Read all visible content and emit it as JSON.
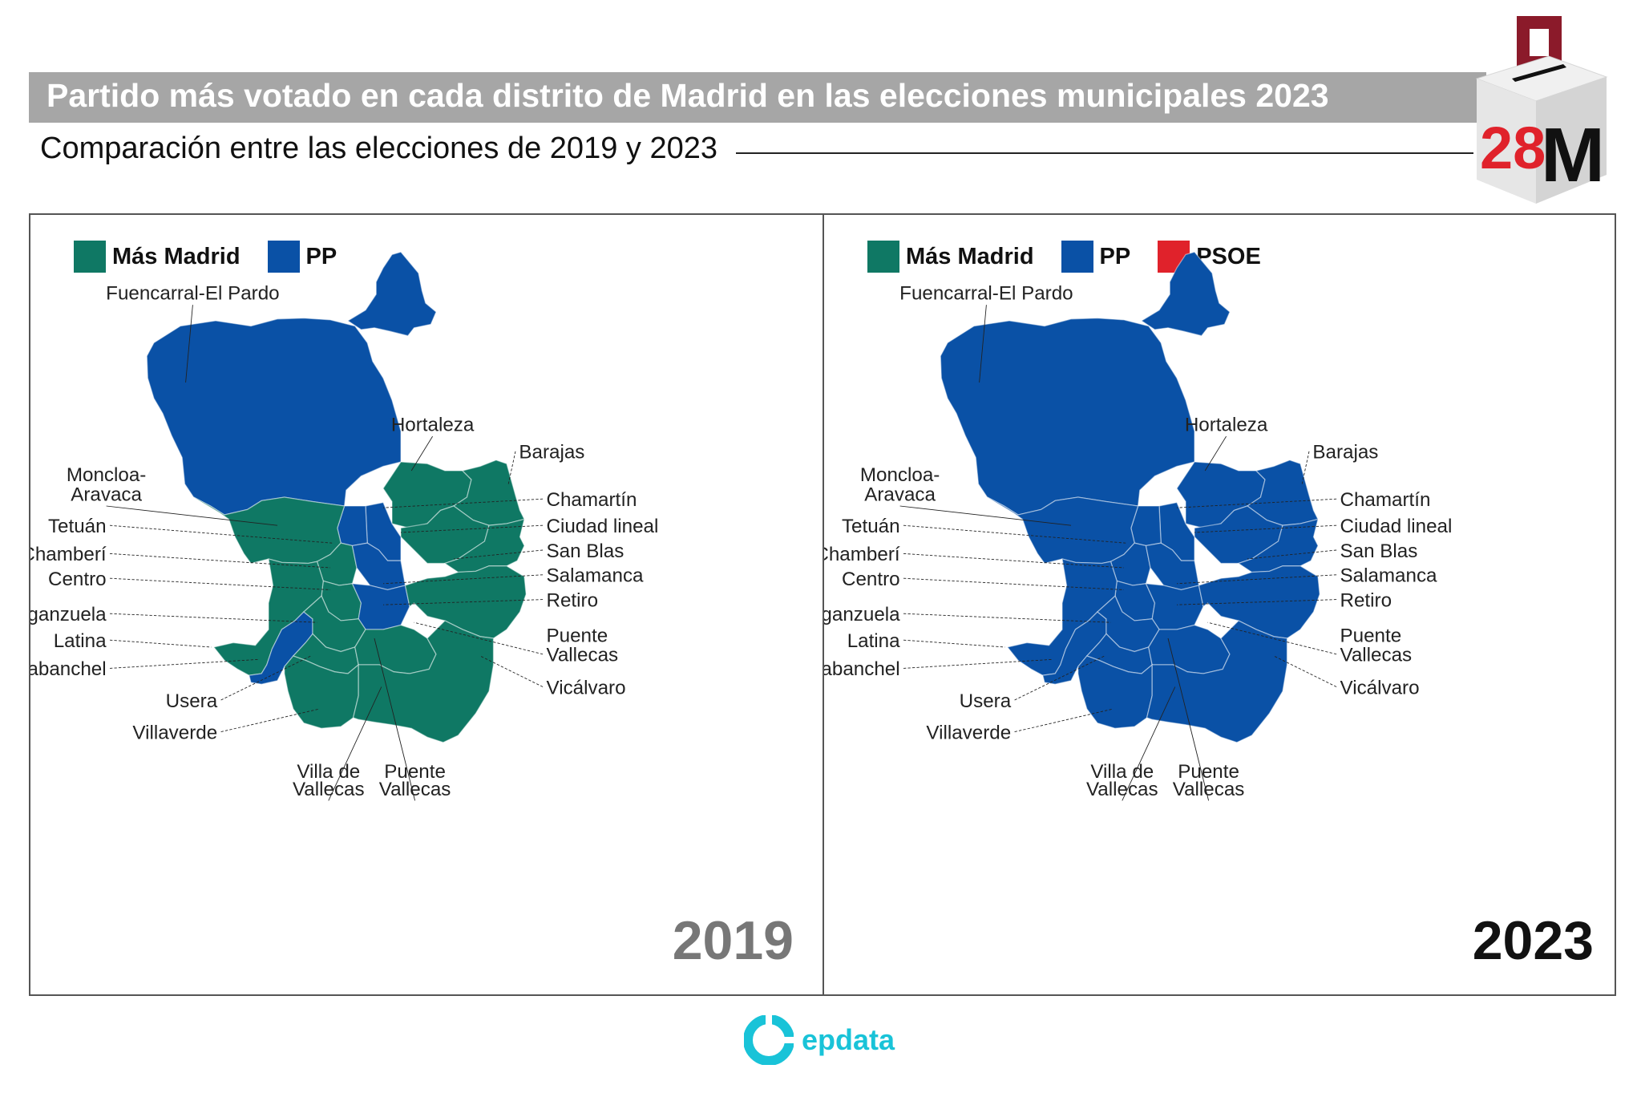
{
  "header": {
    "title": "Partido más votado en cada distrito de Madrid en las elecciones municipales 2023",
    "subtitle": "Comparación entre las elecciones de 2019 y 2023",
    "badge_number": "28",
    "badge_letter": "M"
  },
  "colors": {
    "mas_madrid": "#0f7864",
    "pp": "#0a51a6",
    "psoe": "#e0222b",
    "title_bar": "#a6a6a6",
    "brand": "#19c3d8"
  },
  "legend_2019": [
    {
      "label": "Más Madrid",
      "color": "#0f7864"
    },
    {
      "label": "PP",
      "color": "#0a51a6"
    }
  ],
  "legend_2023": [
    {
      "label": "Más Madrid",
      "color": "#0f7864"
    },
    {
      "label": "PP",
      "color": "#0a51a6"
    },
    {
      "label": "PSOE",
      "color": "#e0222b"
    }
  ],
  "year_2019": "2019",
  "year_2023": "2023",
  "district_labels": {
    "fuencarral": "Fuencarral-El Pardo",
    "hortaleza": "Hortaleza",
    "barajas": "Barajas",
    "moncloa_1": "Moncloa-",
    "moncloa_2": "Aravaca",
    "chamartin": "Chamartín",
    "tetuan": "Tetuán",
    "ciudad_lineal": "Ciudad lineal",
    "chamberi": "Chamberí",
    "san_blas": "San Blas",
    "centro": "Centro",
    "salamanca": "Salamanca",
    "retiro": "Retiro",
    "arganzuela": "Arganzuela",
    "latina": "Latina",
    "puente_1": "Puente",
    "puente_2": "Vallecas",
    "carabanchel": "Carabanchel",
    "vicalvaro": "Vicálvaro",
    "usera": "Usera",
    "villaverde": "Villaverde",
    "villa_vallecas_1": "Villa de",
    "villa_vallecas_2": "Vallecas",
    "puente_bottom_1": "Puente",
    "puente_bottom_2": "Vallecas"
  },
  "results": {
    "2019": {
      "Fuencarral-El Pardo": "PP",
      "Moncloa-Aravaca": "Más Madrid",
      "Tetuán": "PP",
      "Chamberí": "Más Madrid",
      "Centro": "Más Madrid",
      "Chamartín": "PP",
      "Salamanca": "PP",
      "Retiro": "PP",
      "Hortaleza": "Más Madrid",
      "Barajas": "Más Madrid",
      "Ciudad lineal": "Más Madrid",
      "San Blas": "Más Madrid",
      "Arganzuela": "Más Madrid",
      "Latina": "Más Madrid",
      "Carabanchel": "PP",
      "Usera": "Más Madrid",
      "Villaverde": "Más Madrid",
      "Puente Vallecas": "Más Madrid",
      "Villa de Vallecas": "Más Madrid",
      "Vicálvaro": "Más Madrid"
    },
    "2023": {
      "Fuencarral-El Pardo": "PP",
      "Moncloa-Aravaca": "PP",
      "Tetuán": "PP",
      "Chamberí": "PP",
      "Centro": "PP",
      "Chamartín": "PP",
      "Salamanca": "PP",
      "Retiro": "PP",
      "Hortaleza": "PP",
      "Barajas": "PP",
      "Ciudad lineal": "PP",
      "San Blas": "PP",
      "Arganzuela": "PP",
      "Latina": "PP",
      "Carabanchel": "PP",
      "Usera": "PP",
      "Villaverde": "PP",
      "Puente Vallecas": "PP",
      "Villa de Vallecas": "PP",
      "Vicálvaro": "PP"
    }
  },
  "brand": "epdata"
}
